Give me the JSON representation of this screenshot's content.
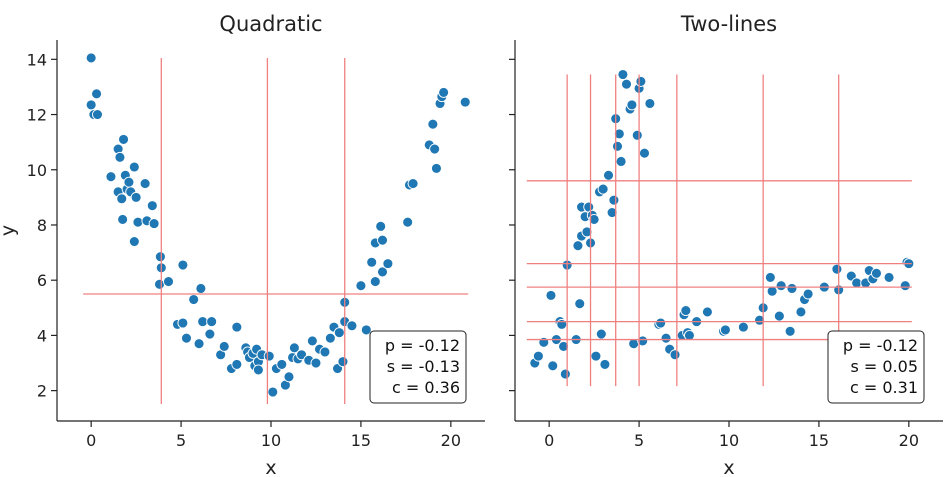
{
  "chart_data": [
    {
      "type": "scatter",
      "title": "Quadratic",
      "xlabel": "x",
      "ylabel": "y",
      "xlim": [
        -1.9,
        21.9
      ],
      "ylim": [
        0.9,
        14.7
      ],
      "xticks": [
        0,
        5,
        10,
        15,
        20
      ],
      "yticks": [
        2,
        4,
        6,
        8,
        10,
        12,
        14
      ],
      "point_color": "#1f77b4",
      "line_color": "#f08080",
      "vlines": [
        3.9,
        9.8,
        14.1
      ],
      "hlines": [
        5.5
      ],
      "stats": [
        "p = -0.12",
        "s = -0.13",
        "c = 0.36"
      ],
      "points": [
        [
          0.0,
          14.05
        ],
        [
          0.0,
          12.35
        ],
        [
          0.15,
          12.0
        ],
        [
          0.35,
          12.0
        ],
        [
          0.3,
          12.75
        ],
        [
          1.1,
          9.75
        ],
        [
          1.5,
          10.75
        ],
        [
          1.6,
          10.45
        ],
        [
          1.8,
          11.1
        ],
        [
          1.5,
          9.2
        ],
        [
          1.7,
          8.95
        ],
        [
          1.75,
          8.2
        ],
        [
          1.9,
          9.8
        ],
        [
          2.0,
          9.3
        ],
        [
          2.1,
          9.55
        ],
        [
          2.2,
          9.2
        ],
        [
          2.4,
          10.1
        ],
        [
          2.5,
          9.0
        ],
        [
          2.4,
          7.4
        ],
        [
          2.6,
          8.1
        ],
        [
          3.0,
          9.5
        ],
        [
          3.1,
          8.15
        ],
        [
          3.4,
          8.7
        ],
        [
          3.5,
          8.05
        ],
        [
          3.85,
          6.85
        ],
        [
          3.9,
          6.45
        ],
        [
          3.8,
          5.85
        ],
        [
          4.3,
          5.95
        ],
        [
          4.8,
          4.4
        ],
        [
          5.1,
          6.55
        ],
        [
          5.1,
          4.45
        ],
        [
          5.3,
          3.9
        ],
        [
          5.7,
          5.3
        ],
        [
          6.1,
          5.7
        ],
        [
          6.2,
          4.5
        ],
        [
          6.0,
          3.7
        ],
        [
          6.6,
          4.05
        ],
        [
          6.7,
          4.5
        ],
        [
          7.2,
          3.3
        ],
        [
          7.4,
          3.6
        ],
        [
          7.8,
          2.8
        ],
        [
          8.1,
          4.3
        ],
        [
          8.1,
          2.95
        ],
        [
          8.6,
          3.55
        ],
        [
          8.7,
          3.4
        ],
        [
          8.8,
          3.2
        ],
        [
          9.0,
          3.35
        ],
        [
          9.1,
          2.9
        ],
        [
          9.2,
          3.5
        ],
        [
          9.3,
          3.05
        ],
        [
          9.5,
          3.3
        ],
        [
          9.3,
          2.75
        ],
        [
          9.9,
          3.25
        ],
        [
          10.1,
          1.95
        ],
        [
          10.3,
          2.8
        ],
        [
          10.6,
          2.95
        ],
        [
          10.8,
          2.2
        ],
        [
          11.0,
          2.5
        ],
        [
          11.2,
          3.2
        ],
        [
          11.3,
          3.55
        ],
        [
          11.5,
          3.15
        ],
        [
          11.7,
          3.3
        ],
        [
          12.1,
          3.1
        ],
        [
          12.3,
          3.8
        ],
        [
          12.5,
          3.0
        ],
        [
          12.7,
          3.5
        ],
        [
          13.0,
          3.4
        ],
        [
          13.3,
          3.9
        ],
        [
          13.5,
          4.3
        ],
        [
          13.8,
          4.1
        ],
        [
          13.7,
          2.8
        ],
        [
          14.0,
          3.05
        ],
        [
          14.1,
          5.2
        ],
        [
          14.1,
          4.5
        ],
        [
          14.5,
          4.35
        ],
        [
          15.0,
          5.8
        ],
        [
          15.3,
          4.2
        ],
        [
          15.6,
          6.65
        ],
        [
          15.8,
          7.35
        ],
        [
          15.8,
          5.95
        ],
        [
          16.1,
          7.95
        ],
        [
          16.2,
          6.3
        ],
        [
          16.2,
          7.45
        ],
        [
          16.5,
          6.6
        ],
        [
          17.6,
          8.1
        ],
        [
          17.7,
          9.45
        ],
        [
          17.9,
          9.5
        ],
        [
          18.8,
          10.9
        ],
        [
          19.0,
          11.65
        ],
        [
          19.1,
          10.75
        ],
        [
          19.2,
          10.05
        ],
        [
          19.4,
          12.4
        ],
        [
          19.5,
          12.65
        ],
        [
          19.6,
          12.8
        ],
        [
          20.8,
          12.45
        ]
      ]
    },
    {
      "type": "scatter",
      "title": "Two-lines",
      "xlabel": "x",
      "ylabel": "",
      "xlim": [
        -1.9,
        21.9
      ],
      "ylim": [
        0.9,
        14.7
      ],
      "xticks": [
        0,
        5,
        10,
        15,
        20
      ],
      "yticks": [
        2,
        4,
        6,
        8,
        10,
        12,
        14
      ],
      "point_color": "#1f77b4",
      "line_color": "#f08080",
      "vlines": [
        1.0,
        2.3,
        3.7,
        5.0,
        7.1,
        11.9,
        16.1
      ],
      "hlines": [
        3.85,
        4.5,
        5.75,
        6.6,
        9.6
      ],
      "stats": [
        "p = -0.12",
        "s = 0.05",
        "c = 0.31"
      ],
      "points": [
        [
          -0.8,
          3.0
        ],
        [
          -0.6,
          3.25
        ],
        [
          -0.3,
          3.75
        ],
        [
          0.1,
          5.45
        ],
        [
          0.2,
          2.9
        ],
        [
          0.4,
          3.85
        ],
        [
          0.6,
          4.5
        ],
        [
          0.7,
          4.4
        ],
        [
          0.8,
          3.6
        ],
        [
          0.9,
          2.6
        ],
        [
          1.0,
          6.55
        ],
        [
          1.5,
          3.85
        ],
        [
          1.6,
          7.25
        ],
        [
          1.7,
          5.15
        ],
        [
          1.8,
          7.6
        ],
        [
          1.8,
          8.65
        ],
        [
          2.0,
          8.3
        ],
        [
          2.1,
          7.75
        ],
        [
          2.2,
          8.65
        ],
        [
          2.3,
          7.35
        ],
        [
          2.4,
          8.35
        ],
        [
          2.5,
          8.2
        ],
        [
          2.6,
          3.25
        ],
        [
          2.8,
          9.2
        ],
        [
          2.9,
          4.05
        ],
        [
          3.0,
          9.3
        ],
        [
          3.1,
          2.95
        ],
        [
          3.3,
          9.8
        ],
        [
          3.5,
          8.45
        ],
        [
          3.6,
          8.9
        ],
        [
          3.7,
          11.85
        ],
        [
          3.8,
          10.85
        ],
        [
          3.9,
          11.3
        ],
        [
          4.0,
          10.3
        ],
        [
          4.1,
          13.45
        ],
        [
          4.3,
          13.1
        ],
        [
          4.5,
          12.2
        ],
        [
          4.6,
          12.35
        ],
        [
          4.7,
          3.7
        ],
        [
          4.9,
          11.25
        ],
        [
          5.0,
          12.95
        ],
        [
          5.1,
          13.2
        ],
        [
          5.3,
          10.6
        ],
        [
          5.2,
          3.8
        ],
        [
          5.6,
          12.4
        ],
        [
          6.1,
          4.4
        ],
        [
          6.2,
          4.45
        ],
        [
          6.5,
          3.9
        ],
        [
          6.7,
          3.5
        ],
        [
          7.0,
          3.3
        ],
        [
          7.4,
          4.0
        ],
        [
          7.5,
          4.75
        ],
        [
          7.6,
          4.9
        ],
        [
          7.7,
          4.1
        ],
        [
          7.8,
          4.0
        ],
        [
          8.2,
          4.5
        ],
        [
          8.8,
          4.85
        ],
        [
          9.7,
          4.15
        ],
        [
          9.8,
          4.2
        ],
        [
          10.8,
          4.3
        ],
        [
          11.7,
          4.55
        ],
        [
          11.9,
          5.0
        ],
        [
          12.3,
          6.1
        ],
        [
          12.4,
          5.6
        ],
        [
          12.8,
          4.7
        ],
        [
          12.9,
          5.8
        ],
        [
          13.4,
          4.15
        ],
        [
          13.5,
          5.7
        ],
        [
          14.0,
          4.85
        ],
        [
          14.2,
          5.3
        ],
        [
          14.4,
          5.5
        ],
        [
          15.3,
          5.75
        ],
        [
          16.0,
          6.4
        ],
        [
          16.1,
          5.65
        ],
        [
          16.8,
          6.15
        ],
        [
          17.1,
          5.9
        ],
        [
          17.6,
          5.9
        ],
        [
          17.8,
          6.35
        ],
        [
          18.0,
          6.05
        ],
        [
          18.2,
          6.25
        ],
        [
          18.9,
          6.1
        ],
        [
          19.8,
          5.8
        ],
        [
          19.9,
          6.65
        ],
        [
          20.0,
          6.6
        ]
      ]
    }
  ]
}
